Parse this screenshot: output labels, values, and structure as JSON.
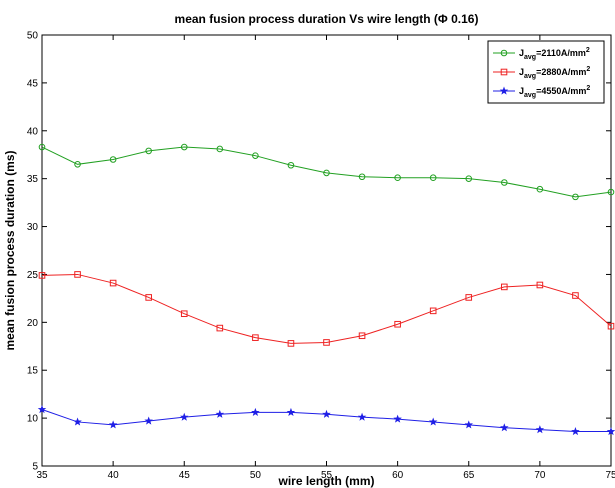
{
  "chart_data": {
    "type": "line",
    "title": "mean fusion process duration Vs wire length (Φ 0.16)",
    "xlabel": "wire length (mm)",
    "ylabel": "mean fusion process duration (ms)",
    "xlim": [
      35,
      75
    ],
    "ylim": [
      5,
      50
    ],
    "xticks": [
      35,
      40,
      45,
      50,
      55,
      60,
      65,
      70,
      75
    ],
    "yticks": [
      5,
      10,
      15,
      20,
      25,
      30,
      35,
      40,
      45,
      50
    ],
    "grid": false,
    "legend_position": "top-right",
    "x": [
      35,
      37.5,
      40,
      42.5,
      45,
      47.5,
      50,
      52.5,
      55,
      57.5,
      60,
      62.5,
      65,
      67.5,
      70,
      72.5,
      75
    ],
    "series": [
      {
        "legend": {
          "prefix": "J",
          "subscript": "avg",
          "value": "=2110A/mm",
          "superscript": "2"
        },
        "color": "#22a022",
        "marker": "circle",
        "values": [
          38.3,
          36.5,
          37.0,
          37.9,
          38.3,
          38.1,
          37.4,
          36.4,
          35.6,
          35.2,
          35.1,
          35.1,
          35.0,
          34.6,
          33.9,
          33.1,
          33.6
        ]
      },
      {
        "legend": {
          "prefix": "J",
          "subscript": "avg",
          "value": "=2880A/mm",
          "superscript": "2"
        },
        "color": "#ee2222",
        "marker": "square",
        "values": [
          24.9,
          25.0,
          24.1,
          22.6,
          20.9,
          19.4,
          18.4,
          17.8,
          17.9,
          18.6,
          19.8,
          21.2,
          22.6,
          23.7,
          23.9,
          22.8,
          19.6
        ]
      },
      {
        "legend": {
          "prefix": "J",
          "subscript": "avg",
          "value": "=4550A/mm",
          "superscript": "2"
        },
        "color": "#1f1fe6",
        "marker": "star",
        "values": [
          10.9,
          9.6,
          9.3,
          9.7,
          10.1,
          10.4,
          10.6,
          10.6,
          10.4,
          10.1,
          9.9,
          9.6,
          9.3,
          9.0,
          8.8,
          8.6,
          8.6
        ]
      }
    ]
  }
}
